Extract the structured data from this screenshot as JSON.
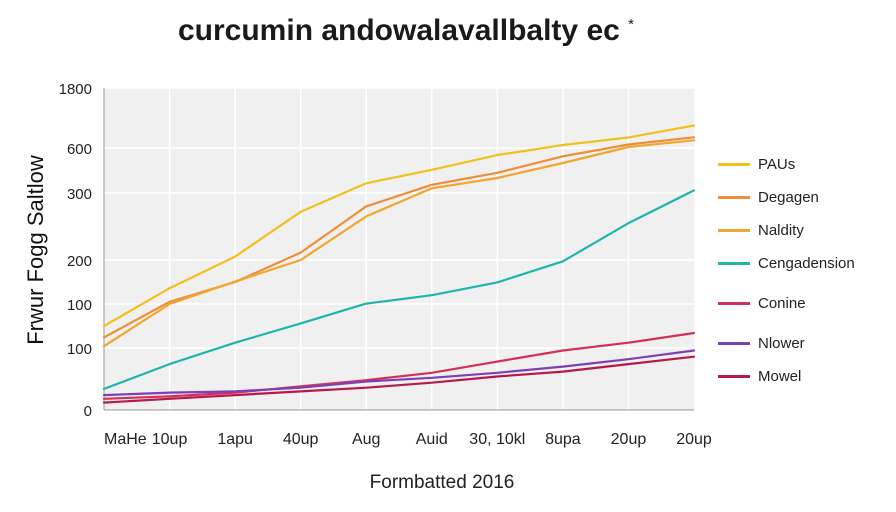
{
  "chart_data": {
    "type": "line",
    "title": "curcumin andowalavallbalty ec",
    "title_sup": "*",
    "xlabel": "Formbatted 2016",
    "ylabel": "Frwur Fogg Saltlow",
    "y_ticks": [
      "0",
      "100",
      "100",
      "200",
      "300",
      "600",
      "1800"
    ],
    "categories": [
      "MaHe",
      "10up",
      "1apu",
      "40up",
      "Aug",
      "Auid",
      "30, 10kl",
      "8upa",
      "20up",
      "20up"
    ],
    "grid": true,
    "legend_position": "right",
    "series": [
      {
        "name": "PAUs",
        "color": "#f2c01d",
        "values": [
          75,
          136,
          205,
          272,
          365,
          455,
          553,
          660,
          810,
          1050
        ]
      },
      {
        "name": "Degagen",
        "color": "#ee8d3a",
        "values": [
          62,
          105,
          150,
          211,
          280,
          355,
          435,
          545,
          670,
          815
        ]
      },
      {
        "name": "Naldity",
        "color": "#f1a62d",
        "values": [
          52,
          100,
          151,
          200,
          265,
          331,
          400,
          500,
          620,
          755
        ]
      },
      {
        "name": "Cengadension",
        "color": "#1fb5ac",
        "values": [
          17,
          37,
          56,
          78,
          101,
          120,
          149,
          197,
          255,
          317
        ]
      },
      {
        "name": "Conine",
        "color": "#d42f5a",
        "values": [
          9,
          11,
          14,
          19,
          24,
          30,
          39,
          48,
          56,
          67
        ]
      },
      {
        "name": "Nlower",
        "color": "#7b40b6",
        "values": [
          12,
          14,
          15,
          18,
          23,
          26,
          30,
          35,
          41,
          48
        ]
      },
      {
        "name": "Mowel",
        "color": "#b51a4a",
        "values": [
          6,
          9,
          12,
          15,
          18,
          22,
          27,
          31,
          37,
          43
        ]
      }
    ]
  }
}
